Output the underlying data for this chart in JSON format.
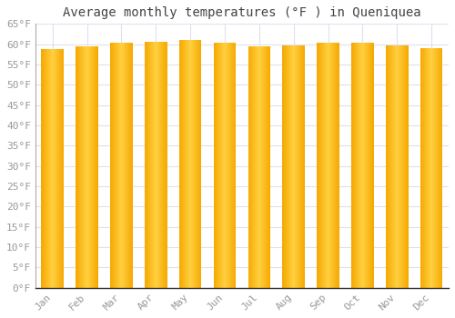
{
  "title": "Average monthly temperatures (°F ) in Queniquea",
  "months": [
    "Jan",
    "Feb",
    "Mar",
    "Apr",
    "May",
    "Jun",
    "Jul",
    "Aug",
    "Sep",
    "Oct",
    "Nov",
    "Dec"
  ],
  "values": [
    58.8,
    59.4,
    60.4,
    60.6,
    61.0,
    60.3,
    59.5,
    59.7,
    60.3,
    60.4,
    59.7,
    59.0
  ],
  "bar_color_edge": "#F5A800",
  "bar_color_center": "#FFD040",
  "ylim": [
    0,
    65
  ],
  "yticks": [
    0,
    5,
    10,
    15,
    20,
    25,
    30,
    35,
    40,
    45,
    50,
    55,
    60,
    65
  ],
  "ytick_labels": [
    "0°F",
    "5°F",
    "10°F",
    "15°F",
    "20°F",
    "25°F",
    "30°F",
    "35°F",
    "40°F",
    "45°F",
    "50°F",
    "55°F",
    "60°F",
    "65°F"
  ],
  "background_color": "#ffffff",
  "plot_bg_color": "#ffffff",
  "grid_color": "#e0e0ee",
  "title_fontsize": 10,
  "tick_fontsize": 8,
  "font_family": "monospace",
  "bar_width": 0.65,
  "n_gradient_segments": 60
}
